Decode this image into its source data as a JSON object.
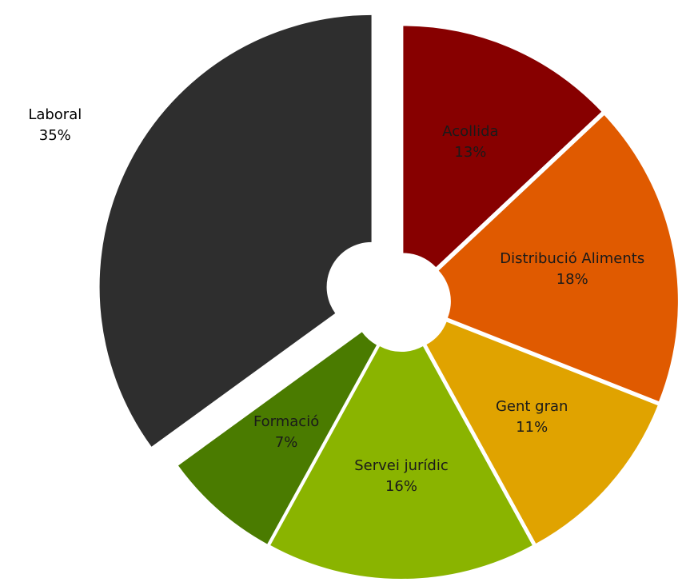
{
  "chart_data": {
    "type": "pie",
    "categories": [
      "Acollida",
      "Distribució Aliments",
      "Gent gran",
      "Servei jurídic",
      "Formació",
      "Laboral"
    ],
    "values": [
      13,
      18,
      11,
      16,
      7,
      35
    ],
    "value_labels": [
      "13%",
      "18%",
      "11%",
      "16%",
      "7%",
      "35%"
    ],
    "colors": [
      "#870000",
      "#e05a00",
      "#e0a300",
      "#8ab400",
      "#4a7b00",
      "#2e2e2e"
    ]
  }
}
